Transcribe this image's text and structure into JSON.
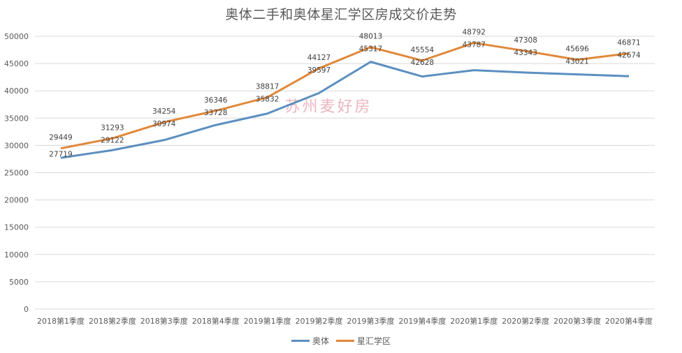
{
  "chart_data": {
    "type": "line",
    "title": "奥体二手和奥体星汇学区房成交价走势",
    "xlabel": "",
    "ylabel": "",
    "ylim": [
      0,
      50000
    ],
    "yticks": [
      0,
      5000,
      10000,
      15000,
      20000,
      25000,
      30000,
      35000,
      40000,
      45000,
      50000
    ],
    "grid": true,
    "legend_position": "bottom",
    "categories": [
      "2018第1季度",
      "2018第2季度",
      "2018第3季度",
      "2018第4季度",
      "2019第1季度",
      "2019第2季度",
      "2019第3季度",
      "2019第4季度",
      "2020第1季度",
      "2020第2季度",
      "2020第3季度",
      "2020第4季度"
    ],
    "series": [
      {
        "name": "奥体",
        "color": "#5b8fc0",
        "values": [
          27719,
          29122,
          30974,
          33728,
          35832,
          39597,
          45317,
          42628,
          43787,
          43343,
          43021,
          42674
        ]
      },
      {
        "name": "星汇学区",
        "color": "#e0883a",
        "values": [
          29449,
          31293,
          34254,
          36346,
          38817,
          44127,
          48013,
          45554,
          48792,
          47308,
          45696,
          46871
        ]
      }
    ],
    "annotations": [
      "苏州麦好房"
    ]
  },
  "watermark": "苏州麦好房"
}
